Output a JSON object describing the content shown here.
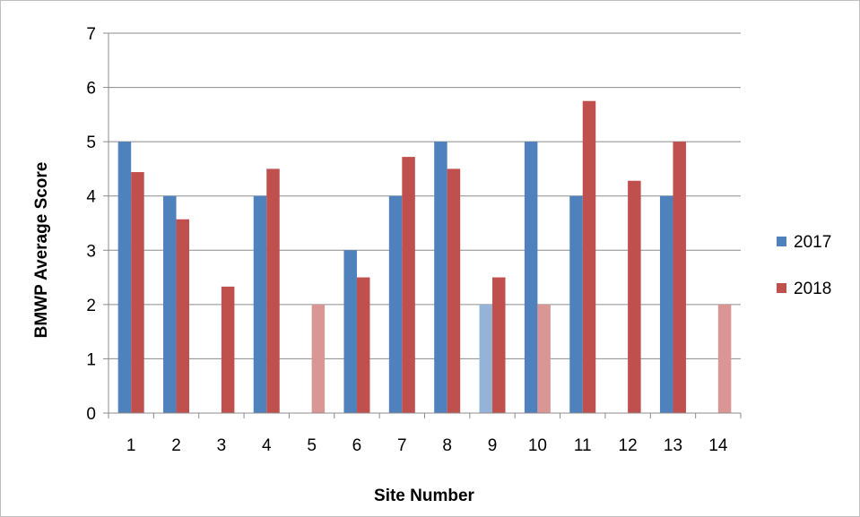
{
  "chart_data": {
    "type": "bar",
    "title": "",
    "xlabel": "Site Number",
    "ylabel": "BMWP Average Score",
    "categories": [
      "1",
      "2",
      "3",
      "4",
      "5",
      "6",
      "7",
      "8",
      "9",
      "10",
      "11",
      "12",
      "13",
      "14"
    ],
    "ylim": [
      0,
      7
    ],
    "yticks": [
      "0",
      "1",
      "2",
      "3",
      "4",
      "5",
      "6",
      "7"
    ],
    "grid": true,
    "legend": "right",
    "series": [
      {
        "name": "2017",
        "color": "#4f81bd",
        "faded_color": "#95b3d7",
        "values": [
          5,
          4,
          null,
          4,
          null,
          3,
          4,
          5,
          2,
          5,
          4,
          null,
          4,
          null
        ],
        "faded": [
          false,
          false,
          false,
          false,
          false,
          false,
          false,
          false,
          true,
          false,
          false,
          false,
          false,
          false
        ]
      },
      {
        "name": "2018",
        "color": "#c0504d",
        "faded_color": "#d99694",
        "values": [
          4.44,
          3.57,
          2.33,
          4.5,
          2,
          2.5,
          4.72,
          4.5,
          2.5,
          2,
          5.75,
          4.28,
          5,
          2
        ],
        "faded": [
          false,
          false,
          false,
          false,
          true,
          false,
          false,
          false,
          false,
          true,
          false,
          false,
          false,
          true
        ]
      }
    ]
  }
}
